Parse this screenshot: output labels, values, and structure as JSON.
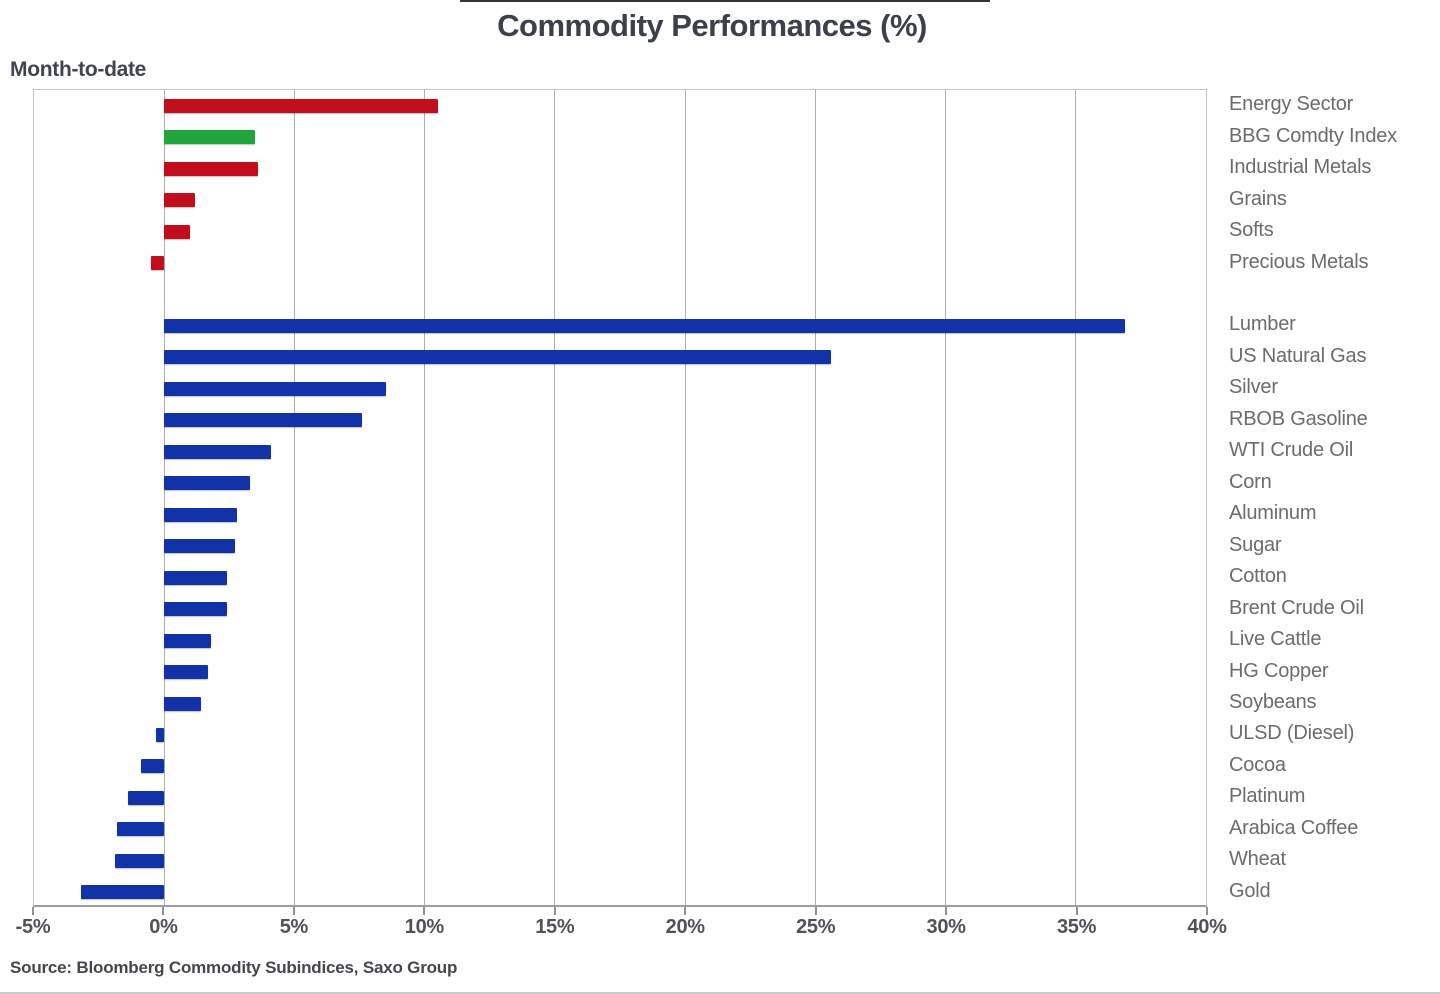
{
  "title": "Commodity Performances (%)",
  "subtitle": "Month-to-date",
  "source": "Source: Bloomberg Commodity Subindices, Saxo Group",
  "chart_data": {
    "type": "bar",
    "orientation": "horizontal",
    "unit": "%",
    "xlim": [
      -5,
      40
    ],
    "grid": true,
    "legend_position": "none",
    "axis_tick_values": [
      -5,
      0,
      5,
      10,
      15,
      20,
      25,
      30,
      35,
      40
    ],
    "axis_tick_labels": [
      "-5%",
      "0%",
      "5%",
      "10%",
      "15%",
      "20%",
      "25%",
      "30%",
      "35%",
      "40%"
    ],
    "gridline_values": [
      0,
      5,
      10,
      15,
      20,
      25,
      30,
      35
    ],
    "colors": {
      "red": "#c20e1c",
      "green": "#1fa53c",
      "blue": "#1233a8"
    },
    "groups": [
      {
        "name": "sector-indices",
        "items": [
          {
            "label": "Energy Sector",
            "value": 10.5,
            "color": "red"
          },
          {
            "label": "BBG Comdty Index",
            "value": 3.5,
            "color": "green"
          },
          {
            "label": "Industrial Metals",
            "value": 3.6,
            "color": "red"
          },
          {
            "label": "Grains",
            "value": 1.2,
            "color": "red"
          },
          {
            "label": "Softs",
            "value": 1.0,
            "color": "red"
          },
          {
            "label": "Precious Metals",
            "value": -0.5,
            "color": "red"
          }
        ]
      },
      {
        "name": "individual-commodities",
        "items": [
          {
            "label": "Lumber",
            "value": 36.9,
            "color": "blue"
          },
          {
            "label": "US Natural Gas",
            "value": 25.6,
            "color": "blue"
          },
          {
            "label": "Silver",
            "value": 8.5,
            "color": "blue"
          },
          {
            "label": "RBOB Gasoline",
            "value": 7.6,
            "color": "blue"
          },
          {
            "label": "WTI Crude Oil",
            "value": 4.1,
            "color": "blue"
          },
          {
            "label": "Corn",
            "value": 3.3,
            "color": "blue"
          },
          {
            "label": "Aluminum",
            "value": 2.8,
            "color": "blue"
          },
          {
            "label": "Sugar",
            "value": 2.7,
            "color": "blue"
          },
          {
            "label": "Cotton",
            "value": 2.4,
            "color": "blue"
          },
          {
            "label": "Brent Crude Oil",
            "value": 2.4,
            "color": "blue"
          },
          {
            "label": "Live Cattle",
            "value": 1.8,
            "color": "blue"
          },
          {
            "label": "HG Copper",
            "value": 1.7,
            "color": "blue"
          },
          {
            "label": "Soybeans",
            "value": 1.4,
            "color": "blue"
          },
          {
            "label": "ULSD (Diesel)",
            "value": -0.3,
            "color": "blue"
          },
          {
            "label": "Cocoa",
            "value": -0.9,
            "color": "blue"
          },
          {
            "label": "Platinum",
            "value": -1.4,
            "color": "blue"
          },
          {
            "label": "Arabica Coffee",
            "value": -1.8,
            "color": "blue"
          },
          {
            "label": "Wheat",
            "value": -1.9,
            "color": "blue"
          },
          {
            "label": "Gold",
            "value": -3.2,
            "color": "blue"
          }
        ]
      }
    ]
  }
}
